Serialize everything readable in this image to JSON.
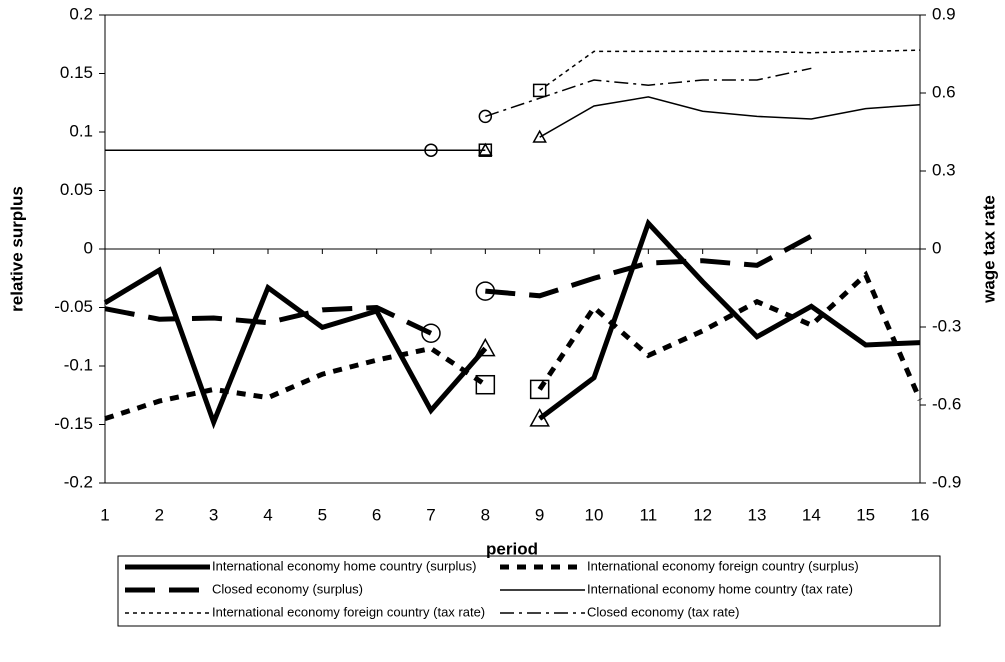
{
  "chart_data": {
    "type": "line",
    "x_label": "period",
    "y_label": "relative surplus",
    "y2_label": "wage tax rate",
    "x": [
      1,
      2,
      3,
      4,
      5,
      6,
      7,
      8,
      9,
      10,
      11,
      12,
      13,
      14,
      15,
      16
    ],
    "xlim": [
      1,
      16
    ],
    "xticks": [
      1,
      2,
      3,
      4,
      5,
      6,
      7,
      8,
      9,
      10,
      11,
      12,
      13,
      14,
      15,
      16
    ],
    "ylim": [
      -0.2,
      0.2
    ],
    "yticks": [
      -0.2,
      -0.15,
      -0.1,
      -0.05,
      0,
      0.05,
      0.1,
      0.15,
      0.2
    ],
    "y2lim": [
      -0.9,
      0.9
    ],
    "y2ticks": [
      -0.9,
      -0.6,
      -0.3,
      0,
      0.3,
      0.6,
      0.9
    ],
    "legend": "bottom",
    "series": [
      {
        "name": "International economy home country (surplus)",
        "color": "#000000",
        "style": "solid",
        "width": 5,
        "break_before": 9,
        "marker": "triangle",
        "marker_at": [
          8,
          9
        ],
        "values": [
          -0.046,
          -0.018,
          -0.148,
          -0.033,
          -0.067,
          -0.053,
          -0.138,
          -0.085,
          -0.145,
          -0.11,
          0.022,
          -0.028,
          -0.075,
          -0.049,
          -0.082,
          -0.08
        ]
      },
      {
        "name": "International economy foreign country (surplus)",
        "color": "#000000",
        "style": "dash",
        "width": 5,
        "break_before": 9,
        "marker": "square",
        "marker_at": [
          8,
          9
        ],
        "values": [
          -0.145,
          -0.13,
          -0.12,
          -0.127,
          -0.107,
          -0.095,
          -0.085,
          -0.116,
          -0.12,
          -0.05,
          -0.091,
          -0.07,
          -0.045,
          -0.065,
          -0.022,
          -0.129
        ]
      },
      {
        "name": "Closed economy (surplus)",
        "color": "#000000",
        "style": "longdash",
        "width": 5,
        "break_before": 8,
        "marker": "circle",
        "marker_at": [
          7,
          8
        ],
        "values": [
          -0.051,
          -0.06,
          -0.059,
          -0.063,
          -0.052,
          -0.05,
          -0.072,
          -0.036,
          -0.04,
          -0.025,
          -0.012,
          -0.01,
          -0.014,
          0.011,
          null,
          null
        ]
      },
      {
        "name": "International economy home country (tax rate)",
        "color": "#000000",
        "style": "solid",
        "width": 1.5,
        "axis": "y2",
        "break_before": 9,
        "marker": "triangle",
        "marker_at": [
          8,
          9
        ],
        "values": [
          0.38,
          0.38,
          0.38,
          0.38,
          0.38,
          0.38,
          0.38,
          0.38,
          0.43,
          0.55,
          0.585,
          0.53,
          0.51,
          0.5,
          0.54,
          0.555
        ]
      },
      {
        "name": "International economy foreign country (tax rate)",
        "color": "#000000",
        "style": "dot",
        "width": 1.5,
        "axis": "y2",
        "break_before": 9,
        "marker": "square",
        "marker_at": [
          8,
          9
        ],
        "values": [
          0.38,
          0.38,
          0.38,
          0.38,
          0.38,
          0.38,
          0.38,
          0.38,
          0.61,
          0.76,
          0.76,
          0.76,
          0.76,
          0.755,
          0.76,
          0.765
        ]
      },
      {
        "name": "Closed economy (tax rate)",
        "color": "#000000",
        "style": "dashdot",
        "width": 1.5,
        "axis": "y2",
        "break_before": 8,
        "marker": "circle",
        "marker_at": [
          7,
          8
        ],
        "values": [
          0.38,
          0.38,
          0.38,
          0.38,
          0.38,
          0.38,
          0.38,
          0.51,
          0.58,
          0.65,
          0.63,
          0.65,
          0.65,
          0.695,
          null,
          null
        ]
      }
    ]
  }
}
